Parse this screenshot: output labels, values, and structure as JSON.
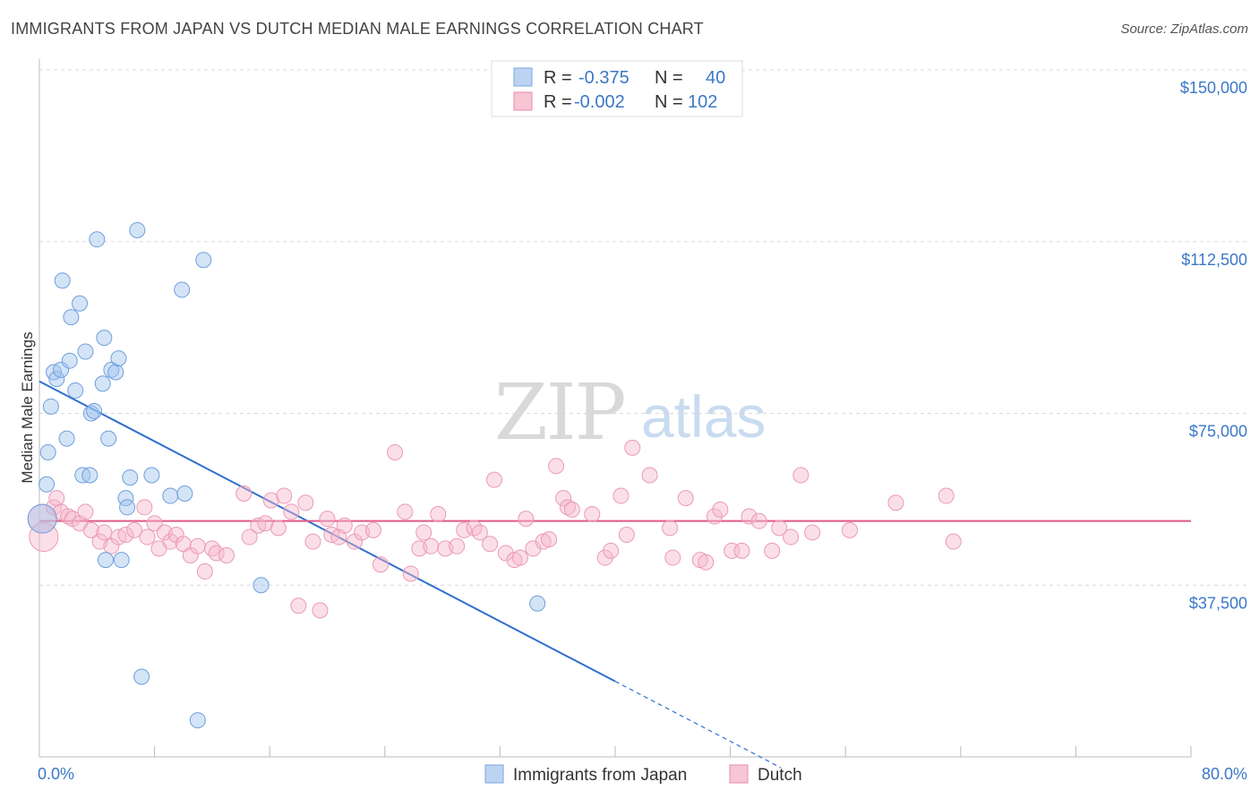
{
  "title": "IMMIGRANTS FROM JAPAN VS DUTCH MEDIAN MALE EARNINGS CORRELATION CHART",
  "source": "Source: ZipAtlas.com",
  "watermark": {
    "part1": "ZIP",
    "part2": "atlas"
  },
  "legend": {
    "rows": [
      {
        "r_label": "R =",
        "r_value": "-0.375",
        "n_label": "N =",
        "n_value": "40",
        "color": "#7aa7e0",
        "fill": "#bcd4f2"
      },
      {
        "r_label": "R =",
        "r_value": "-0.002",
        "n_label": "N =",
        "n_value": "102",
        "color": "#e88ba8",
        "fill": "#f7c5d4"
      }
    ]
  },
  "bottom_legend": [
    {
      "label": "Immigrants from Japan",
      "color": "#7aa7e0",
      "fill": "#bcd4f2"
    },
    {
      "label": "Dutch",
      "color": "#e88ba8",
      "fill": "#f7c5d4"
    }
  ],
  "chart_data": {
    "type": "scatter",
    "title": "IMMIGRANTS FROM JAPAN VS DUTCH MEDIAN MALE EARNINGS CORRELATION CHART",
    "xlabel": "",
    "ylabel": "Median Male Earnings",
    "xlim": [
      0,
      80
    ],
    "ylim": [
      0,
      150000
    ],
    "x_tick_labels": [
      "0.0%",
      "80.0%"
    ],
    "y_ticks": [
      37500,
      75000,
      112500,
      150000
    ],
    "y_tick_labels": [
      "$37,500",
      "$75,000",
      "$112,500",
      "$150,000"
    ],
    "grid": true,
    "legend_position": "top-center",
    "series": [
      {
        "name": "Immigrants from Japan",
        "color": "#3b78d8",
        "points": [
          [
            0.2,
            52000
          ],
          [
            0.5,
            59500
          ],
          [
            0.6,
            66500
          ],
          [
            0.8,
            76500
          ],
          [
            1.0,
            84000
          ],
          [
            1.2,
            82500
          ],
          [
            1.5,
            84500
          ],
          [
            1.6,
            104000
          ],
          [
            1.9,
            69500
          ],
          [
            2.1,
            86500
          ],
          [
            2.2,
            96000
          ],
          [
            2.5,
            80000
          ],
          [
            2.8,
            99000
          ],
          [
            3.0,
            61500
          ],
          [
            3.2,
            88500
          ],
          [
            3.5,
            61500
          ],
          [
            3.6,
            75000
          ],
          [
            3.8,
            75500
          ],
          [
            4.0,
            113000
          ],
          [
            4.4,
            81500
          ],
          [
            4.5,
            91500
          ],
          [
            4.6,
            43000
          ],
          [
            4.8,
            69500
          ],
          [
            5.0,
            84500
          ],
          [
            5.3,
            84000
          ],
          [
            5.5,
            87000
          ],
          [
            5.7,
            43000
          ],
          [
            6.0,
            56500
          ],
          [
            6.1,
            54500
          ],
          [
            6.3,
            61000
          ],
          [
            6.8,
            115000
          ],
          [
            7.1,
            17500
          ],
          [
            7.8,
            61500
          ],
          [
            9.1,
            57000
          ],
          [
            9.9,
            102000
          ],
          [
            10.1,
            57500
          ],
          [
            11.0,
            8000
          ],
          [
            11.4,
            108500
          ],
          [
            15.4,
            37500
          ],
          [
            34.6,
            33500
          ]
        ]
      },
      {
        "name": "Dutch",
        "color": "#e8668f",
        "points": [
          [
            0.2,
            52000
          ],
          [
            0.3,
            48000
          ],
          [
            1.0,
            54500
          ],
          [
            1.2,
            56500
          ],
          [
            1.5,
            53500
          ],
          [
            2.0,
            52500
          ],
          [
            2.3,
            52000
          ],
          [
            2.8,
            51000
          ],
          [
            3.2,
            53500
          ],
          [
            3.6,
            49500
          ],
          [
            4.2,
            47000
          ],
          [
            4.5,
            49000
          ],
          [
            5.0,
            46000
          ],
          [
            5.5,
            48000
          ],
          [
            6.0,
            48500
          ],
          [
            6.6,
            49500
          ],
          [
            7.3,
            54500
          ],
          [
            7.5,
            48000
          ],
          [
            8.0,
            51000
          ],
          [
            8.3,
            45500
          ],
          [
            8.7,
            49000
          ],
          [
            9.1,
            47000
          ],
          [
            9.5,
            48500
          ],
          [
            10.0,
            46500
          ],
          [
            10.5,
            44000
          ],
          [
            11.0,
            46000
          ],
          [
            11.5,
            40500
          ],
          [
            12.0,
            45500
          ],
          [
            12.3,
            44500
          ],
          [
            13.0,
            44000
          ],
          [
            14.2,
            57500
          ],
          [
            14.6,
            48000
          ],
          [
            15.2,
            50500
          ],
          [
            15.7,
            51000
          ],
          [
            16.1,
            56000
          ],
          [
            16.6,
            50000
          ],
          [
            17.0,
            57000
          ],
          [
            17.5,
            53500
          ],
          [
            18.0,
            33000
          ],
          [
            18.5,
            55500
          ],
          [
            19.0,
            47000
          ],
          [
            19.5,
            32000
          ],
          [
            20.0,
            52000
          ],
          [
            20.3,
            48500
          ],
          [
            20.8,
            48000
          ],
          [
            21.2,
            50500
          ],
          [
            21.9,
            47000
          ],
          [
            22.4,
            49000
          ],
          [
            23.2,
            49500
          ],
          [
            23.7,
            42000
          ],
          [
            24.7,
            66500
          ],
          [
            25.4,
            53500
          ],
          [
            25.8,
            40000
          ],
          [
            26.4,
            45500
          ],
          [
            26.7,
            49000
          ],
          [
            27.2,
            46000
          ],
          [
            27.7,
            53000
          ],
          [
            28.2,
            45500
          ],
          [
            29.0,
            46000
          ],
          [
            29.5,
            49500
          ],
          [
            30.2,
            50000
          ],
          [
            30.6,
            49000
          ],
          [
            31.3,
            46500
          ],
          [
            31.6,
            60500
          ],
          [
            32.4,
            44500
          ],
          [
            33.0,
            43000
          ],
          [
            33.4,
            43500
          ],
          [
            33.8,
            52000
          ],
          [
            34.3,
            45500
          ],
          [
            35.0,
            47000
          ],
          [
            35.4,
            47500
          ],
          [
            35.9,
            63500
          ],
          [
            36.4,
            56500
          ],
          [
            36.7,
            54500
          ],
          [
            37.0,
            54000
          ],
          [
            38.4,
            53000
          ],
          [
            39.3,
            43500
          ],
          [
            39.7,
            45000
          ],
          [
            40.4,
            57000
          ],
          [
            40.8,
            48500
          ],
          [
            41.2,
            67500
          ],
          [
            42.4,
            61500
          ],
          [
            43.8,
            50000
          ],
          [
            44.0,
            43500
          ],
          [
            44.9,
            56500
          ],
          [
            45.9,
            43000
          ],
          [
            46.3,
            42500
          ],
          [
            46.9,
            52500
          ],
          [
            47.3,
            54000
          ],
          [
            48.1,
            45000
          ],
          [
            48.8,
            45000
          ],
          [
            49.3,
            52500
          ],
          [
            50.0,
            51500
          ],
          [
            50.9,
            45000
          ],
          [
            51.4,
            50000
          ],
          [
            52.2,
            48000
          ],
          [
            52.9,
            61500
          ],
          [
            53.7,
            49000
          ],
          [
            56.3,
            49500
          ],
          [
            59.5,
            55500
          ],
          [
            63.0,
            57000
          ],
          [
            63.5,
            47000
          ]
        ]
      }
    ],
    "trend_lines": [
      {
        "series": "Immigrants from Japan",
        "x": [
          0,
          40
        ],
        "y": [
          82000,
          16500
        ],
        "dashed_extension_x": [
          40,
          51.5
        ]
      },
      {
        "series": "Dutch",
        "x": [
          0,
          80
        ],
        "y": [
          51500,
          51500
        ]
      }
    ]
  }
}
